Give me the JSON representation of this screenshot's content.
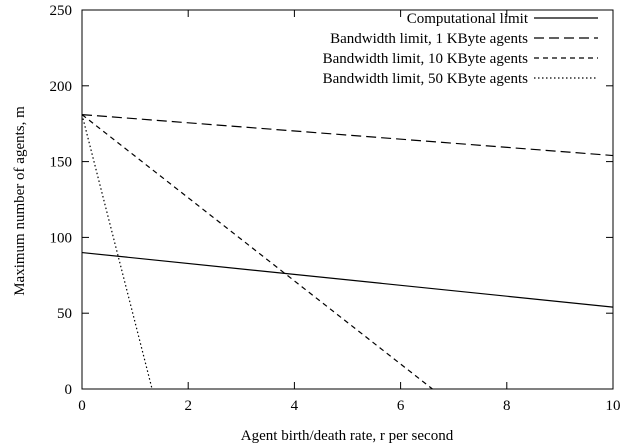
{
  "chart_data": {
    "type": "line",
    "xlabel": "Agent birth/death rate, r per second",
    "ylabel": "Maximum number of agents, m",
    "xlim": [
      0,
      10
    ],
    "ylim": [
      0,
      250
    ],
    "x_ticks": [
      "0",
      "2",
      "4",
      "6",
      "8",
      "10"
    ],
    "y_ticks": [
      "0",
      "50",
      "100",
      "150",
      "200",
      "250"
    ],
    "legend_position": "top-right",
    "grid": false,
    "series": [
      {
        "name": "Computational limit",
        "style": "solid",
        "x": [
          0,
          10
        ],
        "y": [
          90,
          54
        ]
      },
      {
        "name": "Bandwidth limit, 1 KByte agents",
        "style": "long-dash",
        "x": [
          0,
          10
        ],
        "y": [
          181,
          154
        ]
      },
      {
        "name": "Bandwidth limit, 10 KByte agents",
        "style": "short-dash",
        "x": [
          0,
          6.6
        ],
        "y": [
          181,
          0
        ]
      },
      {
        "name": "Bandwidth limit, 50 KByte agents",
        "style": "dotted",
        "x": [
          0,
          1.32
        ],
        "y": [
          181,
          0
        ]
      }
    ]
  }
}
